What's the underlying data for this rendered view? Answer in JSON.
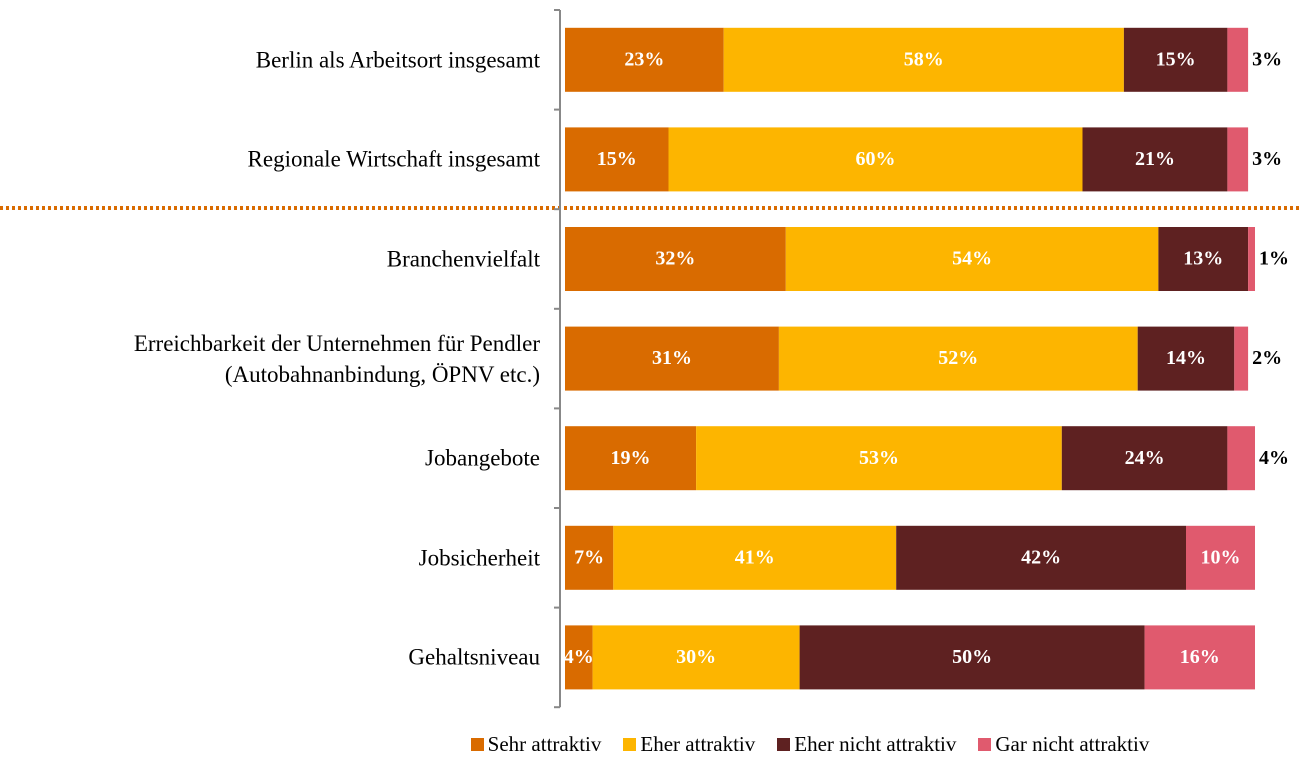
{
  "chart_data": {
    "type": "stacked-bar-horizontal",
    "categories": [
      "Berlin als Arbeitsort insgesamt",
      "Regionale Wirtschaft insgesamt",
      "Branchenvielfalt",
      "Erreichbarkeit der Unternehmen für Pendler\n(Autobahnanbindung, ÖPNV etc.)",
      "Jobangebote",
      "Jobsicherheit",
      "Gehaltsniveau"
    ],
    "series": [
      {
        "name": "Sehr attraktiv",
        "color": "#D96B00",
        "values": [
          23,
          15,
          32,
          31,
          19,
          7,
          4
        ],
        "value_labels": [
          "23%",
          "15%",
          "32%",
          "31%",
          "19%",
          "7%",
          "4%"
        ]
      },
      {
        "name": "Eher attraktiv",
        "color": "#FDB500",
        "values": [
          58,
          60,
          54,
          52,
          53,
          41,
          30
        ],
        "value_labels": [
          "58%",
          "60%",
          "54%",
          "52%",
          "53%",
          "41%",
          "30%"
        ]
      },
      {
        "name": "Eher nicht attraktiv",
        "color": "#5E2121",
        "values": [
          15,
          21,
          13,
          14,
          24,
          42,
          50
        ],
        "value_labels": [
          "15%",
          "21%",
          "13%",
          "14%",
          "24%",
          "42%",
          "50%"
        ]
      },
      {
        "name": "Gar nicht attraktiv",
        "color": "#E05A6E",
        "values": [
          3,
          3,
          1,
          2,
          4,
          10,
          16
        ],
        "value_labels": [
          "3%",
          "3%",
          "1%",
          "2%",
          "4%",
          "10%",
          "16%"
        ]
      }
    ],
    "legend": "bottom"
  }
}
